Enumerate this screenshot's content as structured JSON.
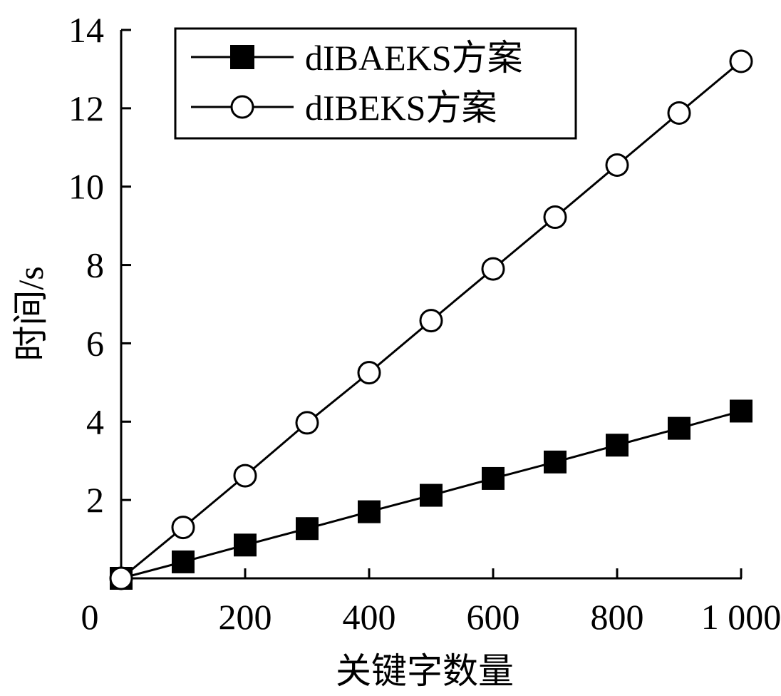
{
  "chart_data": {
    "type": "line",
    "xlabel": "关键字数量",
    "ylabel": "时间/s",
    "xlim": [
      0,
      1000
    ],
    "ylim": [
      0,
      14
    ],
    "x_ticks": [
      0,
      200,
      400,
      600,
      800,
      1000
    ],
    "x_tick_labels": [
      "0",
      "200",
      "400",
      "600",
      "800",
      "1 000"
    ],
    "y_ticks": [
      2,
      4,
      6,
      8,
      10,
      12,
      14
    ],
    "y_tick_labels": [
      "2",
      "4",
      "6",
      "8",
      "10",
      "12",
      "14"
    ],
    "x": [
      0,
      100,
      200,
      300,
      400,
      500,
      600,
      700,
      800,
      900,
      1000
    ],
    "series": [
      {
        "name": "dIBAEKS方案",
        "marker": "square-filled",
        "values": [
          0,
          0.42,
          0.85,
          1.27,
          1.7,
          2.12,
          2.55,
          2.97,
          3.4,
          3.83,
          4.27
        ]
      },
      {
        "name": "dIBEKS方案",
        "marker": "circle-open",
        "values": [
          0,
          1.3,
          2.62,
          3.97,
          5.25,
          6.58,
          7.9,
          9.22,
          10.55,
          11.88,
          13.2
        ]
      }
    ],
    "legend_position": "top-left",
    "grid": false,
    "colors": {
      "line": "#000000",
      "background": "#ffffff"
    }
  }
}
